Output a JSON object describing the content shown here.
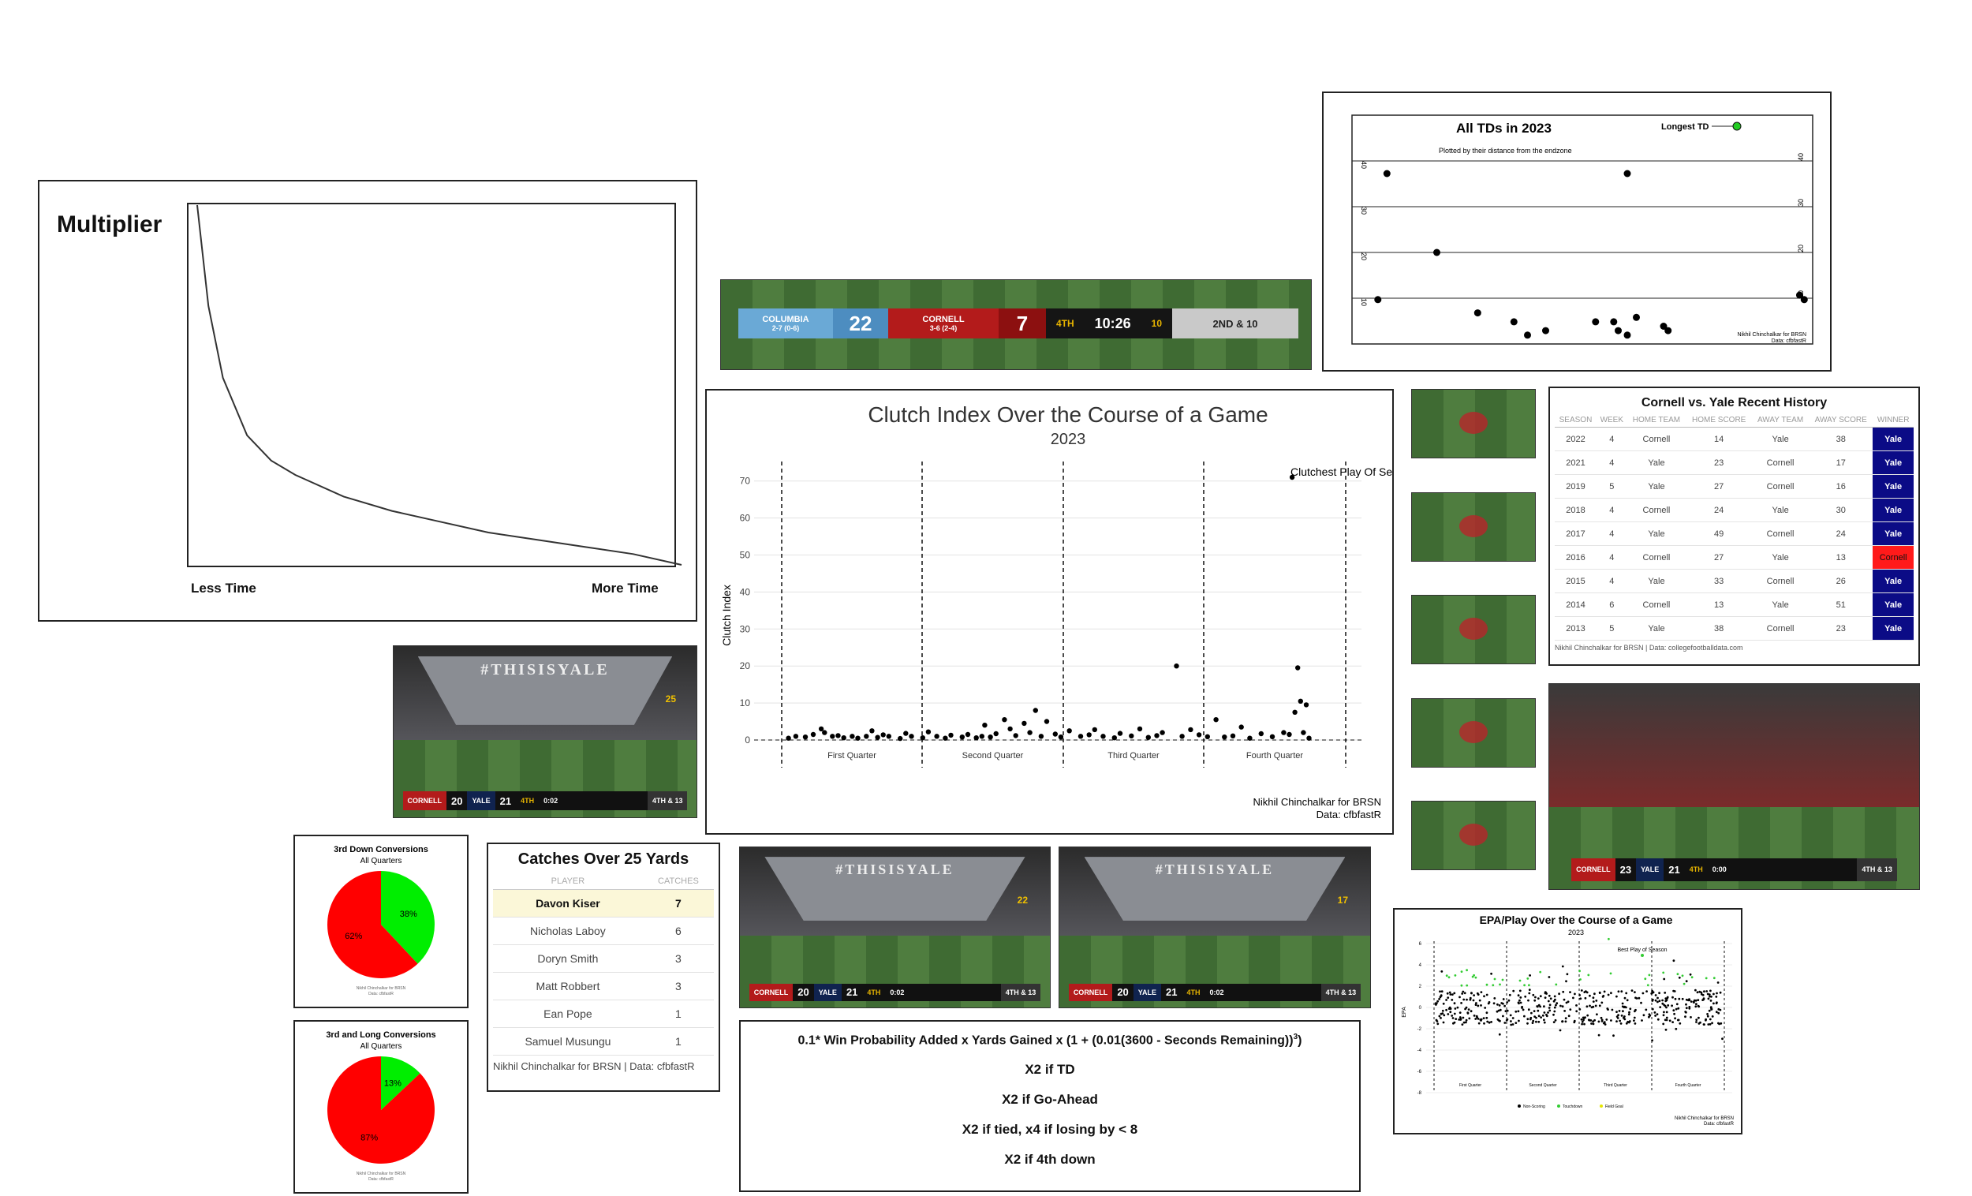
{
  "multiplier": {
    "title": "Multiplier",
    "x_left": "Less Time",
    "x_right": "More Time",
    "chart_data": {
      "type": "line",
      "title": "Multiplier",
      "x_labels": [
        "Less Time",
        "More Time"
      ],
      "x": [
        0,
        0.02,
        0.05,
        0.1,
        0.15,
        0.2,
        0.3,
        0.4,
        0.5,
        0.6,
        0.7,
        0.8,
        0.9,
        1.0
      ],
      "y": [
        1.0,
        0.72,
        0.52,
        0.36,
        0.29,
        0.25,
        0.19,
        0.15,
        0.12,
        0.09,
        0.07,
        0.05,
        0.03,
        0.0
      ]
    }
  },
  "scorebug_main": {
    "away_team": "COLUMBIA",
    "away_record": "2-7 (0-6)",
    "away_score": "22",
    "home_team": "CORNELL",
    "home_record": "3-6 (2-4)",
    "home_score": "7",
    "quarter": "4TH",
    "clock": "10:26",
    "play_clock": "10",
    "down": "2ND & 10"
  },
  "clutch": {
    "chart_data": {
      "type": "scatter",
      "title": "Clutch Index Over the Course of a Game",
      "subtitle": "2023",
      "ylabel": "Clutch Index",
      "ylim": [
        0,
        75
      ],
      "yticks": [
        0,
        10,
        20,
        30,
        40,
        50,
        60,
        70
      ],
      "quarters": [
        "First Quarter",
        "Second Quarter",
        "Third Quarter",
        "Fourth Quarter"
      ],
      "annotation": "Clutchest Play Of Season",
      "points": [
        [
          120,
          0.5
        ],
        [
          250,
          1
        ],
        [
          420,
          0.8
        ],
        [
          560,
          1.5
        ],
        [
          700,
          3
        ],
        [
          760,
          2
        ],
        [
          900,
          1
        ],
        [
          1000,
          1.2
        ],
        [
          1100,
          0.6
        ],
        [
          1250,
          1
        ],
        [
          1350,
          0.5
        ],
        [
          1500,
          1
        ],
        [
          1600,
          2.5
        ],
        [
          1700,
          0.7
        ],
        [
          1800,
          1.4
        ],
        [
          1900,
          1
        ],
        [
          2100,
          0.4
        ],
        [
          2200,
          1.8
        ],
        [
          2300,
          1
        ],
        [
          2500,
          0.6
        ],
        [
          2600,
          2.2
        ],
        [
          2750,
          1
        ],
        [
          2900,
          0.5
        ],
        [
          3000,
          1.3
        ],
        [
          3200,
          0.8
        ],
        [
          3300,
          1.5
        ],
        [
          3450,
          0.6
        ],
        [
          3550,
          1
        ],
        [
          3600,
          4
        ],
        [
          3700,
          0.8
        ],
        [
          3800,
          1.7
        ],
        [
          3950,
          5.5
        ],
        [
          4050,
          3
        ],
        [
          4150,
          1.2
        ],
        [
          4300,
          4.5
        ],
        [
          4400,
          2
        ],
        [
          4500,
          8
        ],
        [
          4600,
          1
        ],
        [
          4700,
          5
        ],
        [
          4850,
          1.6
        ],
        [
          4950,
          0.8
        ],
        [
          5100,
          2.5
        ],
        [
          5300,
          1
        ],
        [
          5450,
          1.4
        ],
        [
          5550,
          2.8
        ],
        [
          5700,
          1
        ],
        [
          5900,
          0.6
        ],
        [
          6000,
          1.8
        ],
        [
          6200,
          1.1
        ],
        [
          6350,
          3
        ],
        [
          6500,
          0.7
        ],
        [
          6650,
          1.2
        ],
        [
          6750,
          2
        ],
        [
          7000,
          20
        ],
        [
          7100,
          1
        ],
        [
          7250,
          2.8
        ],
        [
          7400,
          1.4
        ],
        [
          7550,
          0.9
        ],
        [
          7700,
          5.5
        ],
        [
          7850,
          0.8
        ],
        [
          8000,
          1.1
        ],
        [
          8150,
          3.5
        ],
        [
          8300,
          0.5
        ],
        [
          8500,
          1.7
        ],
        [
          8700,
          0.9
        ],
        [
          8900,
          2
        ],
        [
          9000,
          1.5
        ],
        [
          9100,
          7.5
        ],
        [
          9150,
          19.5
        ],
        [
          9200,
          10.5
        ],
        [
          9250,
          2
        ],
        [
          9300,
          9.5
        ],
        [
          9050,
          71
        ],
        [
          9350,
          0.5
        ]
      ],
      "source_lines": [
        "Nikhil Chinchalkar for BRSN",
        "Data: cfbfastR"
      ]
    }
  },
  "all_tds": {
    "chart_data": {
      "type": "scatter",
      "title": "All TDs in 2023",
      "subtitle": "Plotted by their distance from the endzone",
      "legend": "Longest TD",
      "yard_lines": [
        "40",
        "30",
        "20",
        "10"
      ],
      "points": [
        [
          0.07,
          40
        ],
        [
          0.6,
          40
        ],
        [
          0.18,
          30
        ],
        [
          0.05,
          10
        ],
        [
          0.27,
          7
        ],
        [
          0.35,
          5
        ],
        [
          0.38,
          2
        ],
        [
          0.42,
          3
        ],
        [
          0.53,
          5
        ],
        [
          0.57,
          5
        ],
        [
          0.58,
          3
        ],
        [
          0.6,
          2
        ],
        [
          0.62,
          6
        ],
        [
          0.68,
          4
        ],
        [
          0.69,
          3
        ],
        [
          0.98,
          11
        ],
        [
          0.99,
          10
        ]
      ],
      "longest": [
        0.88,
        48
      ],
      "source_lines": [
        "Nikhil Chinchalkar for BRSN",
        "Data: cfbfastR"
      ]
    }
  },
  "history": {
    "title": "Cornell vs. Yale Recent History",
    "columns": [
      "SEASON",
      "WEEK",
      "HOME TEAM",
      "HOME SCORE",
      "AWAY TEAM",
      "AWAY SCORE",
      "WINNER"
    ],
    "rows": [
      [
        "2022",
        "4",
        "Cornell",
        "14",
        "Yale",
        "38",
        "Yale"
      ],
      [
        "2021",
        "4",
        "Yale",
        "23",
        "Cornell",
        "17",
        "Yale"
      ],
      [
        "2019",
        "5",
        "Yale",
        "27",
        "Cornell",
        "16",
        "Yale"
      ],
      [
        "2018",
        "4",
        "Cornell",
        "24",
        "Yale",
        "30",
        "Yale"
      ],
      [
        "2017",
        "4",
        "Yale",
        "49",
        "Cornell",
        "24",
        "Yale"
      ],
      [
        "2016",
        "4",
        "Cornell",
        "27",
        "Yale",
        "13",
        "Cornell"
      ],
      [
        "2015",
        "4",
        "Yale",
        "33",
        "Cornell",
        "26",
        "Yale"
      ],
      [
        "2014",
        "6",
        "Cornell",
        "13",
        "Yale",
        "51",
        "Yale"
      ],
      [
        "2013",
        "5",
        "Yale",
        "38",
        "Cornell",
        "23",
        "Yale"
      ]
    ],
    "source": "Nikhil Chinchalkar for BRSN | Data: collegefootballdata.com",
    "colors": {
      "yale": "#0b0b86",
      "cornell": "#ff1a1a"
    }
  },
  "yale_frame": {
    "banner": "#THISISYALE",
    "team1": "CORNELL",
    "score1": "20",
    "team2": "YALE",
    "score2": "21",
    "quarter": "4TH",
    "clock": "0:02",
    "down": "4TH & 13",
    "play_clock": "25"
  },
  "final_frame": {
    "team1": "CORNELL",
    "score1": "23",
    "team2": "YALE",
    "score2": "21",
    "quarter": "4TH",
    "clock": "0:00",
    "down": "4TH & 13"
  },
  "frame2": {
    "play_clock": "22"
  },
  "frame3": {
    "play_clock": "17"
  },
  "third_down": {
    "chart_data": {
      "type": "pie",
      "title": "3rd Down Conversions",
      "subtitle": "All Quarters",
      "slices": [
        {
          "label": "38%",
          "value": 38,
          "color": "#00ee00"
        },
        {
          "label": "62%",
          "value": 62,
          "color": "#ff0000"
        }
      ],
      "source_lines": [
        "Nikhil Chinchalkar for BRSN",
        "Data: cfbfastR"
      ]
    }
  },
  "third_long": {
    "chart_data": {
      "type": "pie",
      "title": "3rd and Long Conversions",
      "subtitle": "All Quarters",
      "slices": [
        {
          "label": "13%",
          "value": 13,
          "color": "#00ee00"
        },
        {
          "label": "87%",
          "value": 87,
          "color": "#ff0000"
        }
      ],
      "source_lines": [
        "Nikhil Chinchalkar for BRSN",
        "Data: cfbfastR"
      ]
    }
  },
  "catches": {
    "title": "Catches Over 25 Yards",
    "columns": [
      "PLAYER",
      "CATCHES"
    ],
    "rows": [
      [
        "Davon Kiser",
        "7"
      ],
      [
        "Nicholas Laboy",
        "6"
      ],
      [
        "Doryn Smith",
        "3"
      ],
      [
        "Matt Robbert",
        "3"
      ],
      [
        "Ean Pope",
        "1"
      ],
      [
        "Samuel Musungu",
        "1"
      ]
    ],
    "source": "Nikhil Chinchalkar for BRSN | Data: cfbfastR"
  },
  "formula": {
    "line1": "0.1* Win Probability Added x Yards Gained x (1 + (0.01(3600 - Seconds Remaining))",
    "line1_sup": "3",
    "line1_end": ")",
    "line2": "X2 if TD",
    "line3": "X2 if Go-Ahead",
    "line4": "X2 if tied, x4 if losing by < 8",
    "line5": "X2 if 4th down"
  },
  "epa": {
    "chart_data": {
      "type": "scatter",
      "title": "EPA/Play Over the Course of a Game",
      "subtitle": "2023",
      "ylabel": "EPA",
      "yticks": [
        6,
        4,
        2,
        0,
        -2,
        -4,
        -6,
        -8
      ],
      "ylim": [
        -8,
        7
      ],
      "quarters": [
        "First Quarter",
        "Second Quarter",
        "Third Quarter",
        "Fourth Quarter"
      ],
      "annotation": "Best Play of Season",
      "legend": [
        "Non-Scoring",
        "Touchdown",
        "Field Goal"
      ],
      "colors": {
        "Non-Scoring": "#000000",
        "Touchdown": "#33cc33",
        "Field Goal": "#e6e600"
      },
      "source_lines": [
        "Nikhil Chinchalkar for BRSN",
        "Data: cfbfastR"
      ]
    }
  }
}
